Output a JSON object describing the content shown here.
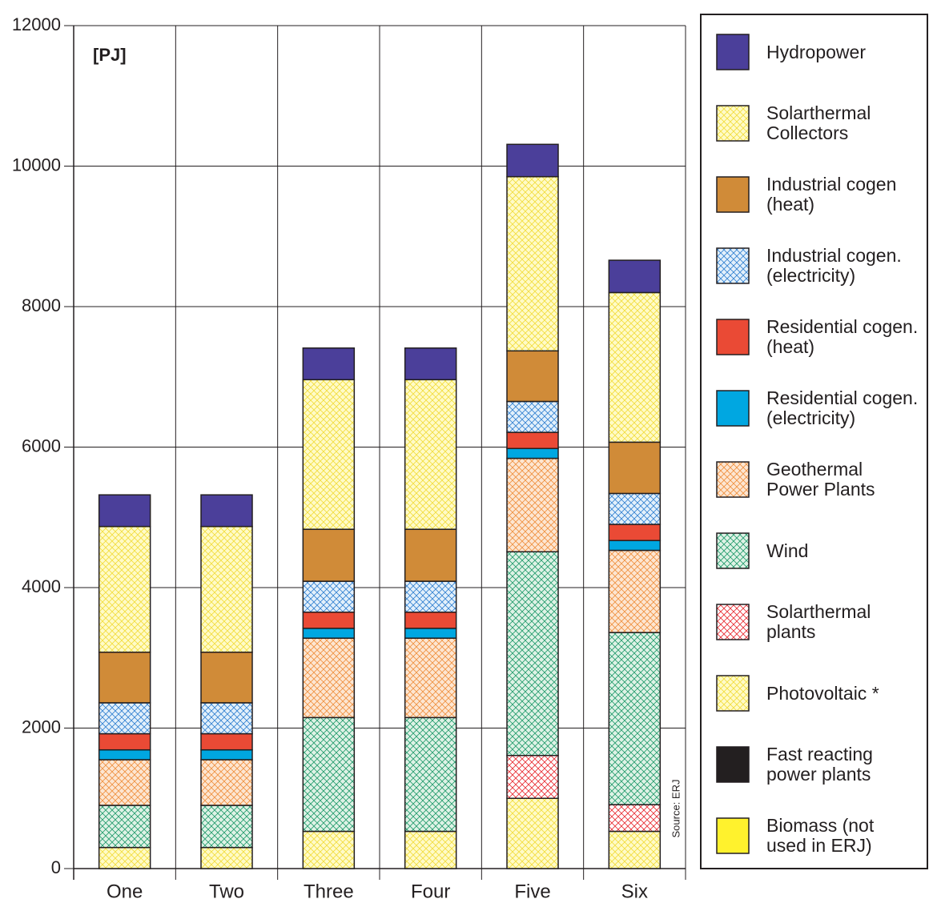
{
  "chart_data": {
    "type": "stacked_bar",
    "annotations": [
      "[PJ]",
      "Source: ERJ"
    ],
    "categories": [
      "One",
      "Two",
      "Three",
      "Four",
      "Five",
      "Six"
    ],
    "ylim": [
      0,
      12000
    ],
    "yticks": [
      0,
      2000,
      4000,
      6000,
      8000,
      10000,
      12000
    ],
    "grid": true,
    "legend": "right",
    "series": [
      {
        "name": "Biomass (not used in ERJ)",
        "color": "#fff22d",
        "hatch": false,
        "values": [
          0,
          0,
          0,
          0,
          0,
          0
        ]
      },
      {
        "name": "Fast reacting power plants",
        "color": "#231f20",
        "hatch": false,
        "values": [
          0,
          0,
          0,
          0,
          0,
          0
        ]
      },
      {
        "name": "Photovoltaic *",
        "color": "#fffbc8",
        "hatch": true,
        "hatch_color": "#f2dc3a",
        "values": [
          300,
          300,
          530,
          530,
          1000,
          530
        ]
      },
      {
        "name": "Solarthermal plants",
        "color": "#ffffff",
        "hatch": true,
        "hatch_color": "#e8282e",
        "values": [
          0,
          0,
          0,
          0,
          610,
          380
        ]
      },
      {
        "name": "Wind",
        "color": "#dff2e6",
        "hatch": true,
        "hatch_color": "#1f9a6a",
        "values": [
          600,
          600,
          1620,
          1620,
          2900,
          2450
        ]
      },
      {
        "name": "Geothermal Power Plants",
        "color": "#fde6d2",
        "hatch": true,
        "hatch_color": "#ef8f3c",
        "values": [
          650,
          650,
          1130,
          1130,
          1330,
          1170
        ]
      },
      {
        "name": "Residential cogen. (electricity)",
        "color": "#00a7e1",
        "hatch": false,
        "values": [
          140,
          140,
          140,
          140,
          140,
          140
        ]
      },
      {
        "name": "Residential cogen. (heat)",
        "color": "#ea4a35",
        "hatch": false,
        "values": [
          230,
          230,
          230,
          230,
          230,
          230
        ]
      },
      {
        "name": "Industrial cogen. (electricity)",
        "color": "#e3f0fb",
        "hatch": true,
        "hatch_color": "#2f7fd0",
        "values": [
          440,
          440,
          440,
          440,
          440,
          440
        ]
      },
      {
        "name": "Industrial cogen (heat)",
        "color": "#d08b38",
        "hatch": false,
        "values": [
          720,
          720,
          740,
          740,
          720,
          730
        ]
      },
      {
        "name": "Solarthermal Collectors",
        "color": "#fffbc8",
        "hatch": true,
        "hatch_color": "#f2dc3a",
        "values": [
          1790,
          1790,
          2130,
          2130,
          2480,
          2130
        ]
      },
      {
        "name": "Hydropower",
        "color": "#4b3f9a",
        "hatch": false,
        "values": [
          450,
          450,
          450,
          450,
          460,
          460
        ]
      }
    ]
  }
}
